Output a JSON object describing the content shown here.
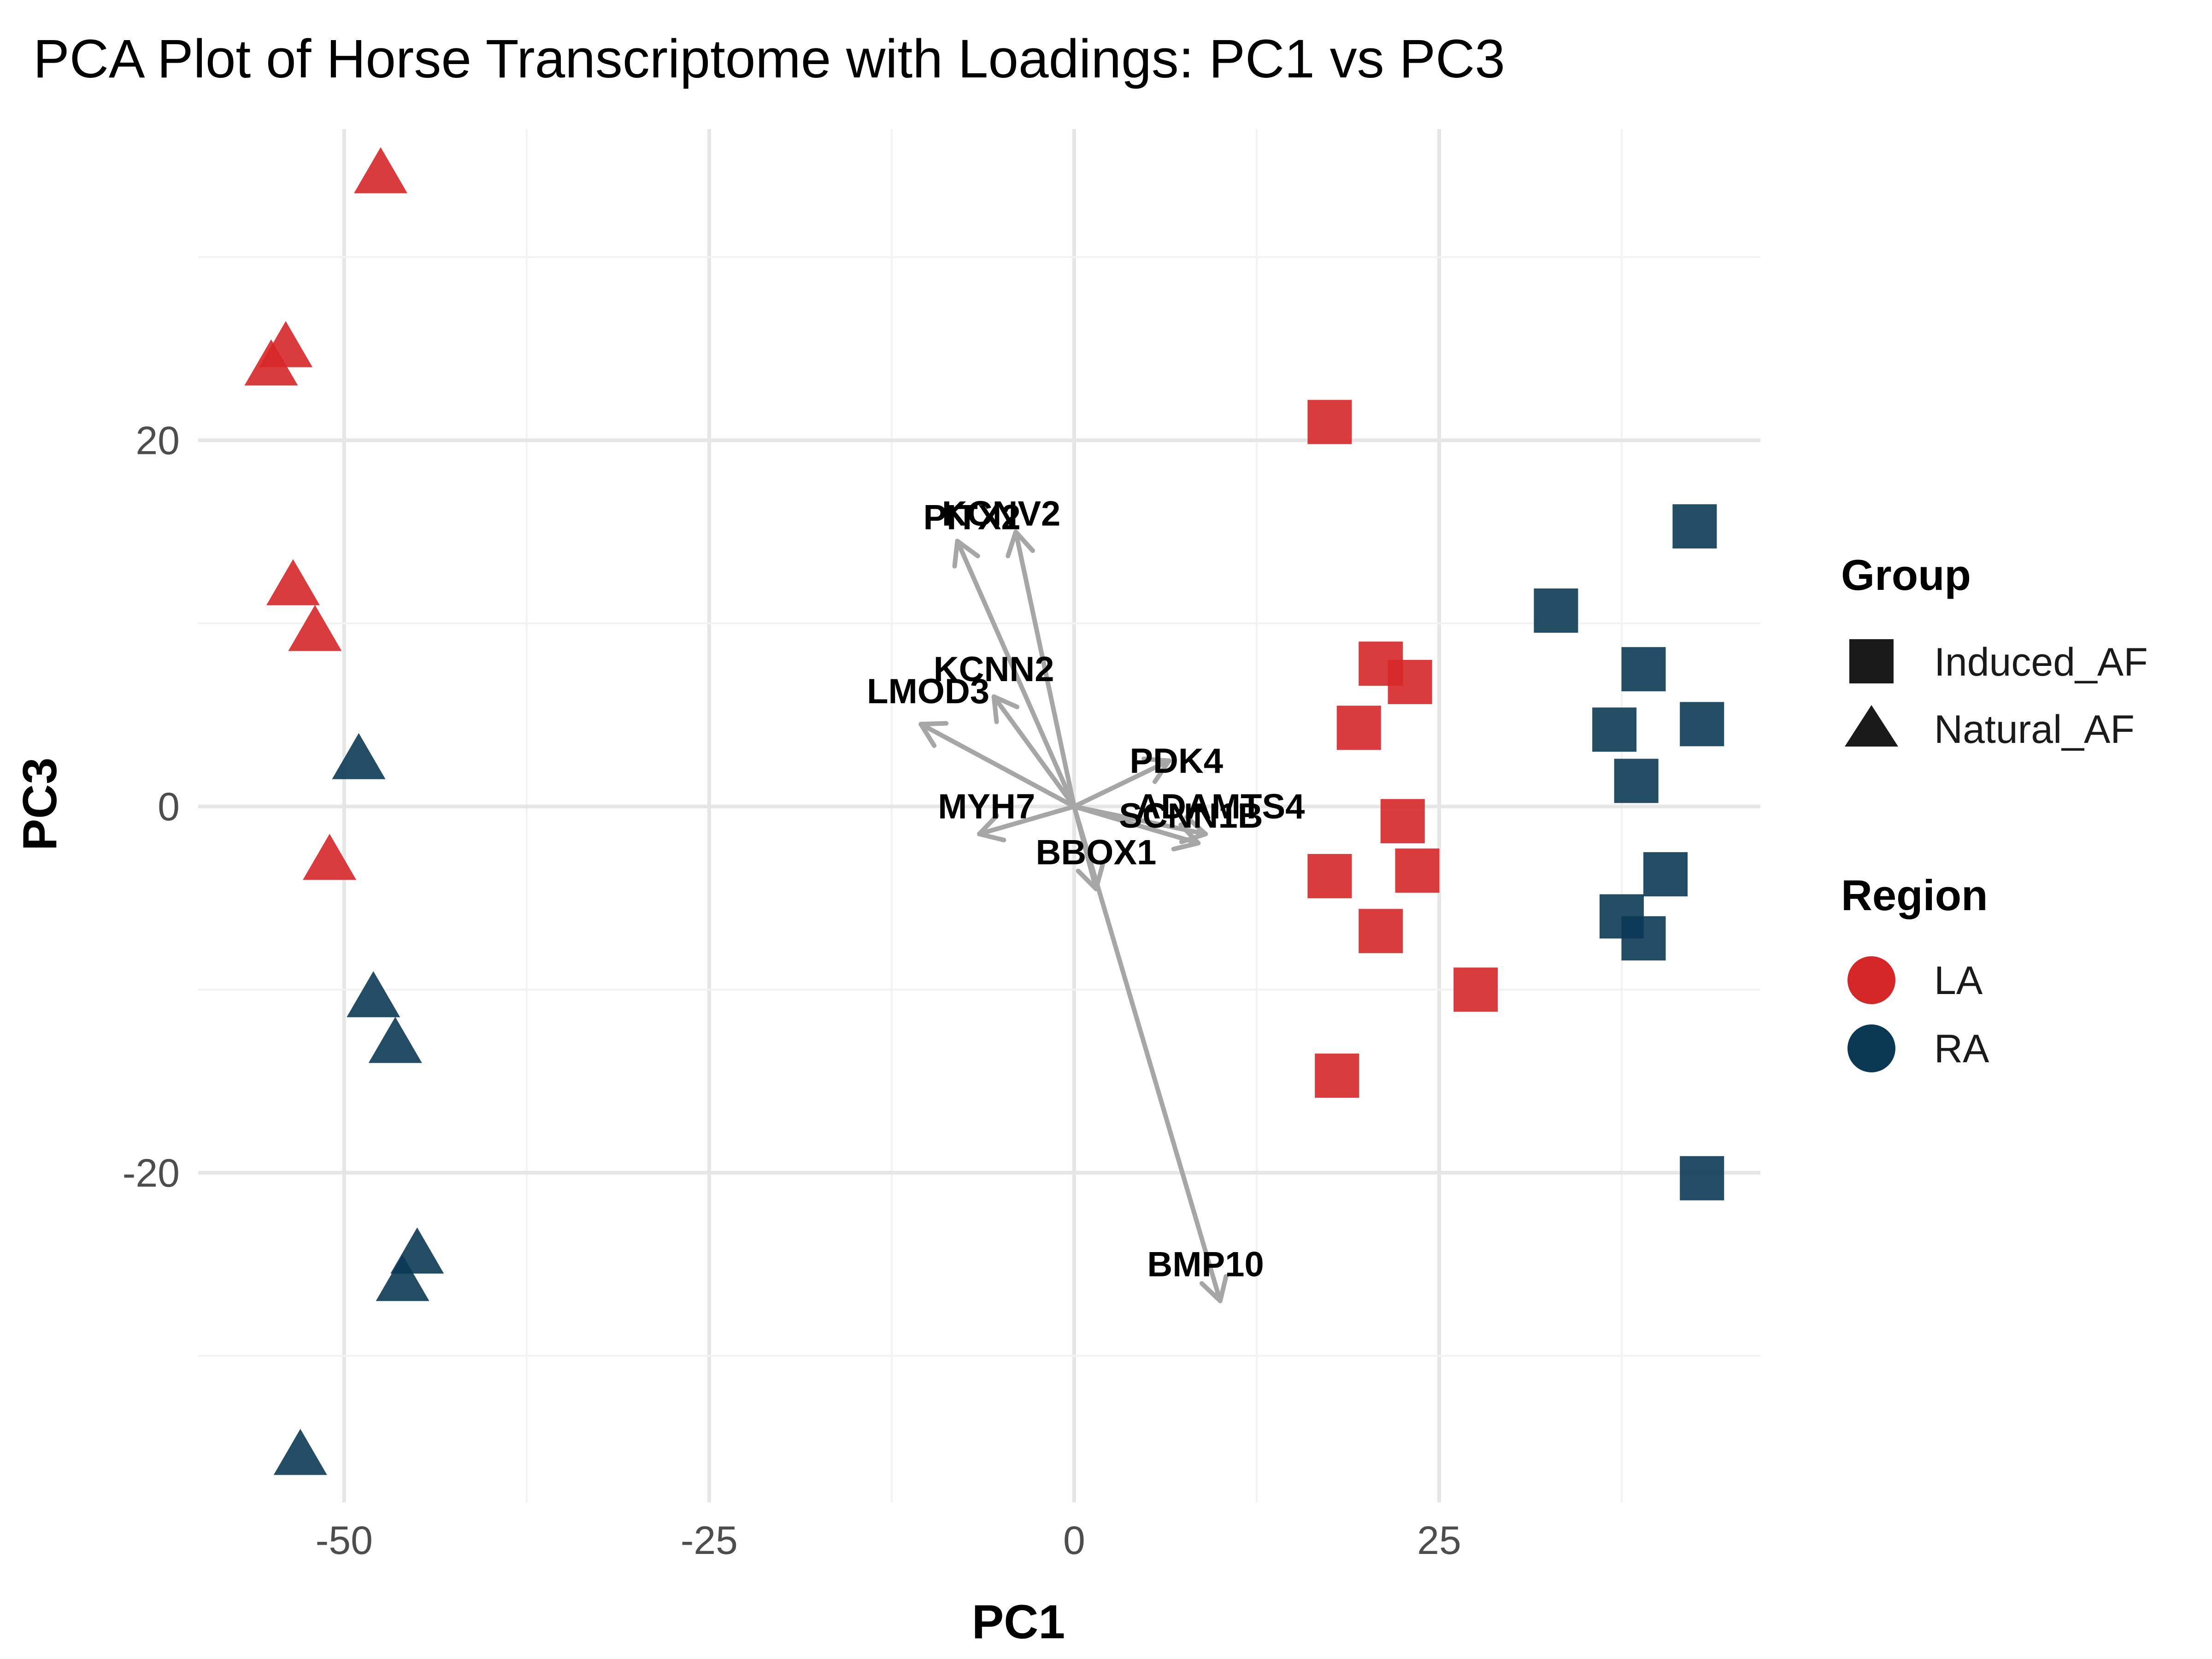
{
  "chart_data": {
    "type": "scatter",
    "title": "PCA Plot of Horse Transcriptome with Loadings: PC1 vs PC3",
    "xlabel": "PC1",
    "ylabel": "PC3",
    "xlim": [
      -60,
      47
    ],
    "ylim": [
      -38,
      37
    ],
    "x_ticks": [
      -50,
      -25,
      0,
      25
    ],
    "y_ticks": [
      -20,
      0,
      20
    ],
    "grid": true,
    "legend_position": "right",
    "colors": {
      "LA": "#d62728",
      "RA": "#0b3954"
    },
    "legends": [
      {
        "title": "Group",
        "items": [
          {
            "label": "Induced_AF",
            "shape": "square"
          },
          {
            "label": "Natural_AF",
            "shape": "triangle"
          }
        ]
      },
      {
        "title": "Region",
        "items": [
          {
            "label": "LA",
            "shape": "circle"
          },
          {
            "label": "RA",
            "shape": "circle"
          }
        ]
      }
    ],
    "points": [
      {
        "x": -47.5,
        "y": 34.5,
        "group": "Natural_AF",
        "region": "LA"
      },
      {
        "x": -54.0,
        "y": 25.0,
        "group": "Natural_AF",
        "region": "LA"
      },
      {
        "x": -55.0,
        "y": 24.0,
        "group": "Natural_AF",
        "region": "LA"
      },
      {
        "x": -53.5,
        "y": 12.0,
        "group": "Natural_AF",
        "region": "LA"
      },
      {
        "x": -52.0,
        "y": 9.5,
        "group": "Natural_AF",
        "region": "LA"
      },
      {
        "x": -51.0,
        "y": -3.0,
        "group": "Natural_AF",
        "region": "LA"
      },
      {
        "x": -49.0,
        "y": 2.5,
        "group": "Natural_AF",
        "region": "RA"
      },
      {
        "x": -48.0,
        "y": -10.5,
        "group": "Natural_AF",
        "region": "RA"
      },
      {
        "x": -46.5,
        "y": -13.0,
        "group": "Natural_AF",
        "region": "RA"
      },
      {
        "x": -45.0,
        "y": -24.5,
        "group": "Natural_AF",
        "region": "RA"
      },
      {
        "x": -46.0,
        "y": -26.0,
        "group": "Natural_AF",
        "region": "RA"
      },
      {
        "x": -53.0,
        "y": -35.5,
        "group": "Natural_AF",
        "region": "RA"
      },
      {
        "x": 17.5,
        "y": 21.0,
        "group": "Induced_AF",
        "region": "LA"
      },
      {
        "x": 21.0,
        "y": 7.8,
        "group": "Induced_AF",
        "region": "LA"
      },
      {
        "x": 23.0,
        "y": 6.8,
        "group": "Induced_AF",
        "region": "LA"
      },
      {
        "x": 19.5,
        "y": 4.3,
        "group": "Induced_AF",
        "region": "LA"
      },
      {
        "x": 22.5,
        "y": -0.8,
        "group": "Induced_AF",
        "region": "LA"
      },
      {
        "x": 17.5,
        "y": -3.8,
        "group": "Induced_AF",
        "region": "LA"
      },
      {
        "x": 23.5,
        "y": -3.5,
        "group": "Induced_AF",
        "region": "LA"
      },
      {
        "x": 21.0,
        "y": -6.8,
        "group": "Induced_AF",
        "region": "LA"
      },
      {
        "x": 27.5,
        "y": -10.0,
        "group": "Induced_AF",
        "region": "LA"
      },
      {
        "x": 18.0,
        "y": -14.7,
        "group": "Induced_AF",
        "region": "LA"
      },
      {
        "x": 42.5,
        "y": 15.3,
        "group": "Induced_AF",
        "region": "RA"
      },
      {
        "x": 33.0,
        "y": 10.7,
        "group": "Induced_AF",
        "region": "RA"
      },
      {
        "x": 39.0,
        "y": 7.5,
        "group": "Induced_AF",
        "region": "RA"
      },
      {
        "x": 37.0,
        "y": 4.2,
        "group": "Induced_AF",
        "region": "RA"
      },
      {
        "x": 43.0,
        "y": 4.5,
        "group": "Induced_AF",
        "region": "RA"
      },
      {
        "x": 38.5,
        "y": 1.4,
        "group": "Induced_AF",
        "region": "RA"
      },
      {
        "x": 40.5,
        "y": -3.7,
        "group": "Induced_AF",
        "region": "RA"
      },
      {
        "x": 37.5,
        "y": -6.0,
        "group": "Induced_AF",
        "region": "RA"
      },
      {
        "x": 39.0,
        "y": -7.2,
        "group": "Induced_AF",
        "region": "RA"
      },
      {
        "x": 43.0,
        "y": -20.3,
        "group": "Induced_AF",
        "region": "RA"
      }
    ],
    "loadings": [
      {
        "gene": "KCNV2",
        "x": -4.0,
        "y": 15.0
      },
      {
        "gene": "PITX2",
        "x": -8.0,
        "y": 14.5
      },
      {
        "gene": "KCNN2",
        "x": -5.5,
        "y": 6.0
      },
      {
        "gene": "LMOD3",
        "x": -10.5,
        "y": 4.5
      },
      {
        "gene": "PDK4",
        "x": 6.5,
        "y": 2.5
      },
      {
        "gene": "MYH7",
        "x": -6.5,
        "y": -1.5
      },
      {
        "gene": "ADAMTS4",
        "x": 9.0,
        "y": -1.5
      },
      {
        "gene": "SCNN1B",
        "x": 8.5,
        "y": -2.0
      },
      {
        "gene": "BBOX1",
        "x": 1.5,
        "y": -4.5
      },
      {
        "gene": "BMP10",
        "x": 10.0,
        "y": -27.0
      }
    ],
    "label_positions": {
      "KCNV2": [
        -5.0,
        16.0
      ],
      "PITX2": [
        -7.0,
        15.8
      ],
      "KCNN2": [
        -5.5,
        7.5
      ],
      "LMOD3": [
        -10.0,
        6.3
      ],
      "PDK4": [
        7.0,
        2.5
      ],
      "MYH7": [
        -6.0,
        0.0
      ],
      "ADAMTS4": [
        10.0,
        0.0
      ],
      "SCNN1B": [
        8.0,
        -0.5
      ],
      "BBOX1": [
        1.5,
        -2.5
      ],
      "BMP10": [
        9.0,
        -25.0
      ]
    }
  }
}
